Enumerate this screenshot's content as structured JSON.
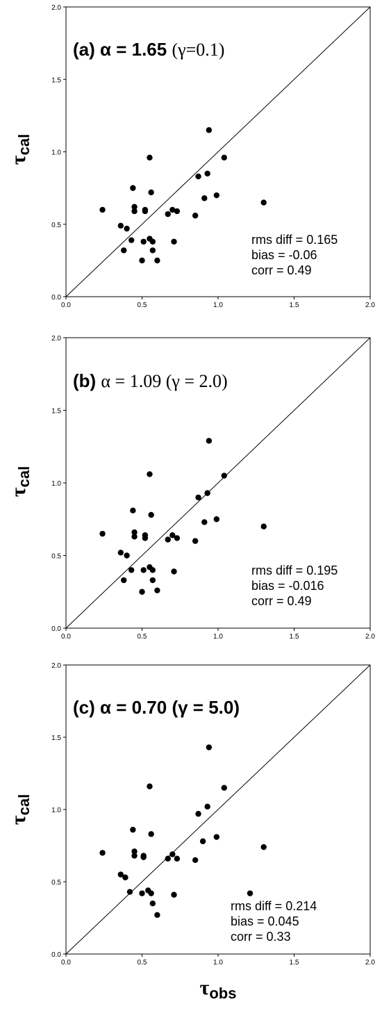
{
  "chart_data": [
    {
      "type": "scatter",
      "title_prefix": "(a)",
      "title_alpha": "α = 1.65",
      "title_gamma": "(γ=0.1)",
      "ylabel": "τ",
      "ylabel_sub": "cal",
      "xlim": [
        0,
        2
      ],
      "ylim": [
        0,
        2
      ],
      "x_ticks": [
        "0.0",
        "0.5",
        "1.0",
        "1.5",
        "2.0"
      ],
      "y_ticks": [
        "0.0",
        "0.5",
        "1.0",
        "1.5",
        "2.0"
      ],
      "stats": [
        "rms diff = 0.165",
        "bias = -0.06",
        "corr = 0.49"
      ],
      "points": [
        [
          0.24,
          0.6
        ],
        [
          0.36,
          0.49
        ],
        [
          0.38,
          0.32
        ],
        [
          0.4,
          0.47
        ],
        [
          0.43,
          0.39
        ],
        [
          0.44,
          0.75
        ],
        [
          0.45,
          0.62
        ],
        [
          0.45,
          0.59
        ],
        [
          0.5,
          0.25
        ],
        [
          0.51,
          0.38
        ],
        [
          0.52,
          0.6
        ],
        [
          0.52,
          0.59
        ],
        [
          0.55,
          0.4
        ],
        [
          0.55,
          0.96
        ],
        [
          0.56,
          0.72
        ],
        [
          0.57,
          0.38
        ],
        [
          0.57,
          0.32
        ],
        [
          0.6,
          0.25
        ],
        [
          0.67,
          0.57
        ],
        [
          0.7,
          0.6
        ],
        [
          0.71,
          0.38
        ],
        [
          0.73,
          0.59
        ],
        [
          0.85,
          0.56
        ],
        [
          0.87,
          0.83
        ],
        [
          0.91,
          0.68
        ],
        [
          0.93,
          0.85
        ],
        [
          0.94,
          1.15
        ],
        [
          0.99,
          0.7
        ],
        [
          1.04,
          0.96
        ],
        [
          1.3,
          0.65
        ]
      ]
    },
    {
      "type": "scatter",
      "title_prefix": "(b)",
      "title_alpha": "α = 1.09",
      "title_gamma": "(γ = 2.0)",
      "ylabel": "τ",
      "ylabel_sub": "cal",
      "xlim": [
        0,
        2
      ],
      "ylim": [
        0,
        2
      ],
      "x_ticks": [
        "0.0",
        "0.5",
        "1.0",
        "1.5",
        "2.0"
      ],
      "y_ticks": [
        "0.0",
        "0.5",
        "1.0",
        "1.5",
        "2.0"
      ],
      "stats": [
        "rms diff = 0.195",
        "bias = -0.016",
        "corr = 0.49"
      ],
      "points": [
        [
          0.24,
          0.65
        ],
        [
          0.36,
          0.52
        ],
        [
          0.38,
          0.33
        ],
        [
          0.4,
          0.5
        ],
        [
          0.43,
          0.4
        ],
        [
          0.44,
          0.81
        ],
        [
          0.45,
          0.66
        ],
        [
          0.45,
          0.63
        ],
        [
          0.5,
          0.25
        ],
        [
          0.51,
          0.4
        ],
        [
          0.52,
          0.64
        ],
        [
          0.52,
          0.62
        ],
        [
          0.55,
          0.42
        ],
        [
          0.55,
          1.06
        ],
        [
          0.56,
          0.78
        ],
        [
          0.57,
          0.4
        ],
        [
          0.57,
          0.33
        ],
        [
          0.6,
          0.26
        ],
        [
          0.67,
          0.61
        ],
        [
          0.7,
          0.64
        ],
        [
          0.71,
          0.39
        ],
        [
          0.73,
          0.62
        ],
        [
          0.85,
          0.6
        ],
        [
          0.87,
          0.9
        ],
        [
          0.91,
          0.73
        ],
        [
          0.93,
          0.93
        ],
        [
          0.94,
          1.29
        ],
        [
          0.99,
          0.75
        ],
        [
          1.04,
          1.05
        ],
        [
          1.3,
          0.7
        ]
      ]
    },
    {
      "type": "scatter",
      "title_prefix": "(c)",
      "title_alpha": "α = 0.70",
      "title_gamma": "(γ = 5.0)",
      "ylabel": "τ",
      "ylabel_sub": "cal",
      "xlabel": "τ",
      "xlabel_sub": "obs",
      "xlim": [
        0,
        2
      ],
      "ylim": [
        0,
        2
      ],
      "x_ticks": [
        "0.0",
        "0.5",
        "1.0",
        "1.5",
        "2.0"
      ],
      "y_ticks": [
        "0.0",
        "0.5",
        "1.0",
        "1.5",
        "2.0"
      ],
      "stats": [
        "rms diff = 0.214",
        "bias = 0.045",
        "corr = 0.33"
      ],
      "points": [
        [
          0.24,
          0.7
        ],
        [
          0.36,
          0.55
        ],
        [
          0.39,
          0.53
        ],
        [
          0.42,
          0.43
        ],
        [
          0.44,
          0.86
        ],
        [
          0.45,
          0.71
        ],
        [
          0.45,
          0.68
        ],
        [
          0.5,
          0.42
        ],
        [
          0.51,
          0.68
        ],
        [
          0.51,
          0.67
        ],
        [
          0.54,
          0.44
        ],
        [
          0.55,
          1.16
        ],
        [
          0.56,
          0.83
        ],
        [
          0.56,
          0.42
        ],
        [
          0.57,
          0.35
        ],
        [
          0.6,
          0.27
        ],
        [
          0.67,
          0.66
        ],
        [
          0.7,
          0.69
        ],
        [
          0.71,
          0.41
        ],
        [
          0.73,
          0.66
        ],
        [
          0.85,
          0.65
        ],
        [
          0.87,
          0.97
        ],
        [
          0.9,
          0.78
        ],
        [
          0.93,
          1.02
        ],
        [
          0.94,
          1.43
        ],
        [
          0.99,
          0.81
        ],
        [
          1.04,
          1.15
        ],
        [
          1.21,
          0.42
        ],
        [
          1.3,
          0.74
        ]
      ]
    }
  ]
}
